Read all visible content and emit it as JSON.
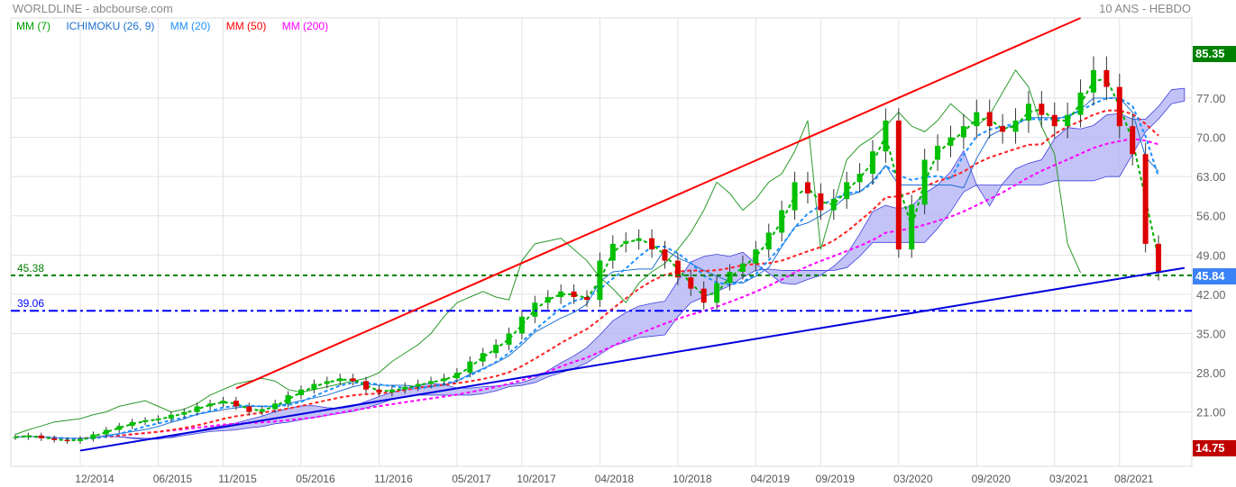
{
  "header": {
    "title": "WORLDLINE - abcbourse.com",
    "period": "10 ANS - HEBDO"
  },
  "legend": [
    {
      "label": "MM (7)",
      "color": "#00a000"
    },
    {
      "label": "ICHIMOKU (26, 9)",
      "color": "#1e6fd0"
    },
    {
      "label": "MM (20)",
      "color": "#1e90ff"
    },
    {
      "label": "MM (50)",
      "color": "#ff0000"
    },
    {
      "label": "MM (200)",
      "color": "#ff00ff"
    }
  ],
  "badges": {
    "high": "85.35",
    "last": "45.84",
    "low": "14.75",
    "high_color": "#008000",
    "last_color": "#3b82f6",
    "low_color": "#c00000"
  },
  "chart_data": {
    "type": "candlestick",
    "title": "",
    "x_start": "2014-07",
    "x_step": "month",
    "x_ticks": [
      "12/2014",
      "06/2015",
      "11/2015",
      "05/2016",
      "11/2016",
      "05/2017",
      "10/2017",
      "04/2018",
      "10/2018",
      "04/2019",
      "09/2019",
      "03/2020",
      "09/2020",
      "03/2021",
      "08/2021"
    ],
    "y_ticks": [
      "21.00",
      "28.00",
      "35.00",
      "42.00",
      "49.00",
      "56.00",
      "63.00",
      "70.00",
      "77.00"
    ],
    "ylim": [
      11.3,
      91.3
    ],
    "grid": true,
    "closes": [
      16.5,
      16.8,
      16.3,
      16.0,
      15.8,
      16.2,
      17.0,
      17.8,
      18.5,
      19.2,
      19.5,
      19.8,
      20.5,
      21.0,
      22.0,
      22.5,
      23.0,
      22.0,
      21.0,
      21.5,
      22.5,
      24.0,
      25.0,
      26.0,
      26.5,
      27.0,
      26.5,
      25.0,
      24.5,
      25.0,
      25.5,
      26.0,
      26.5,
      27.0,
      28.0,
      30.0,
      31.5,
      33.0,
      35.0,
      38.0,
      40.5,
      41.5,
      42.5,
      41.5,
      41.0,
      48.0,
      51.0,
      51.5,
      52.0,
      50.0,
      48.0,
      45.0,
      43.0,
      40.5,
      44.0,
      46.0,
      47.5,
      50.0,
      53.0,
      57.0,
      62.0,
      60.0,
      57.0,
      59.0,
      62.0,
      63.5,
      67.5,
      73.0,
      50.0,
      58.0,
      66.0,
      68.5,
      70.0,
      72.0,
      74.5,
      72.0,
      71.0,
      73.0,
      76.0,
      74.0,
      72.0,
      74.0,
      78.0,
      82.0,
      79.0,
      72.0,
      67.0,
      51.0,
      45.84
    ],
    "hlines": [
      {
        "label": "45.38",
        "value": 45.38,
        "color": "#008000",
        "style": "dashed"
      },
      {
        "label": "39.06",
        "value": 39.06,
        "color": "#0000ff",
        "style": "dashdot"
      }
    ],
    "trendlines": [
      {
        "color": "#ff0000",
        "from": [
          "2015-12",
          25.2
        ],
        "to": [
          "2021-05",
          91.3
        ]
      },
      {
        "color": "#0000dd",
        "from": [
          "2014-12",
          14.1
        ],
        "to": [
          "2022-01",
          46.7
        ]
      }
    ],
    "colors": {
      "up": "#00c000",
      "down": "#dd0000",
      "cloud": "#b4b4f5",
      "chikou": "#2a9a2a",
      "ma7": "#00b000",
      "ma20": "#1e90ff",
      "ma50": "#ff2020",
      "ma200": "#ff00ff"
    }
  }
}
